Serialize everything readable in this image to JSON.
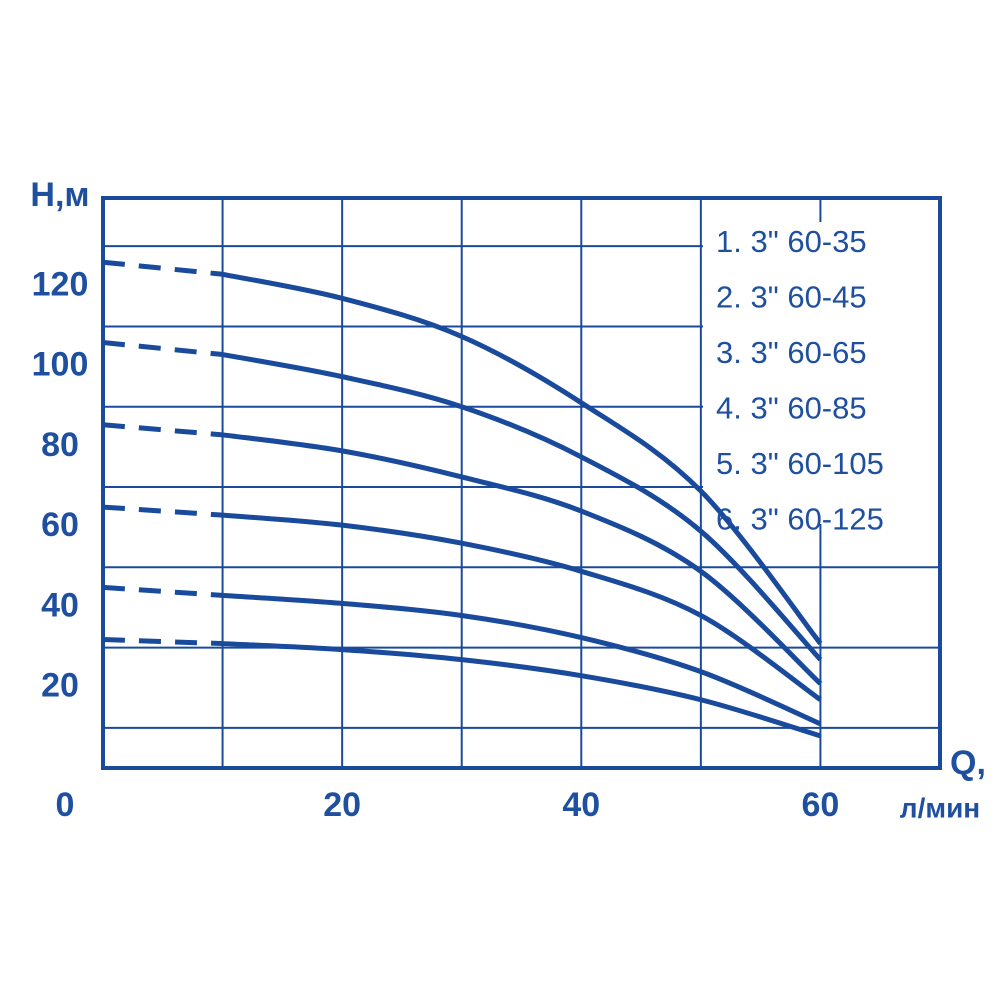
{
  "chart_data": {
    "type": "line",
    "y_label": "Н,м",
    "x_label": "Q,",
    "x_unit": "л/мин",
    "x": [
      0,
      10,
      20,
      30,
      40,
      50,
      60
    ],
    "dashed_below_x": 10,
    "color": "#1a4a9c",
    "series": [
      {
        "name": "1. 3\" 60-35",
        "values": [
          32,
          31,
          29.5,
          27,
          23,
          17,
          8
        ]
      },
      {
        "name": "2. 3\" 60-45",
        "values": [
          45,
          43,
          41,
          38,
          32.5,
          24,
          11
        ]
      },
      {
        "name": "3. 3\" 60-65",
        "values": [
          65,
          63,
          60.5,
          56,
          49,
          38,
          17
        ]
      },
      {
        "name": "4. 3\" 60-85",
        "values": [
          85.5,
          83,
          79,
          72.5,
          64,
          49,
          21
        ]
      },
      {
        "name": "5. 3\" 60-105",
        "values": [
          106,
          103,
          97.5,
          90,
          77.5,
          59,
          27
        ]
      },
      {
        "name": "6. 3\" 60-125",
        "values": [
          126,
          123,
          117,
          107.5,
          91,
          69,
          31
        ]
      }
    ],
    "xlim": [
      0,
      70
    ],
    "ylim": [
      0,
      142
    ],
    "xticks": [
      0,
      20,
      40,
      60
    ],
    "yticks": [
      20,
      40,
      60,
      80,
      100,
      120
    ],
    "xgrid": [
      10,
      20,
      30,
      40,
      50,
      60
    ],
    "ygrid": [
      10,
      30,
      50,
      70,
      90,
      110,
      130
    ],
    "grid": true,
    "legend": "top-right"
  }
}
